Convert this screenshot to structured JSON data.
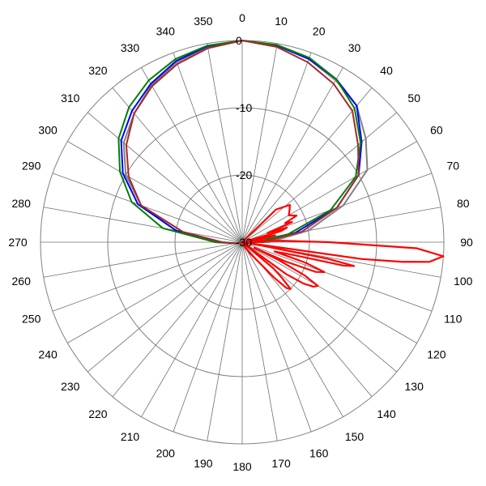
{
  "chart_data": {
    "type": "polar-line",
    "angle_ticks": [
      "0",
      "10",
      "20",
      "30",
      "40",
      "50",
      "60",
      "70",
      "80",
      "90",
      "100",
      "110",
      "120",
      "130",
      "140",
      "150",
      "160",
      "170",
      "180",
      "190",
      "200",
      "210",
      "220",
      "230",
      "240",
      "250",
      "260",
      "270",
      "280",
      "290",
      "300",
      "310",
      "320",
      "330",
      "340",
      "350"
    ],
    "radial_ticks": [
      "0",
      "-10",
      "-20",
      "-30"
    ],
    "rlim": [
      -30,
      0
    ],
    "grid": true,
    "series": [
      {
        "color": "#808080",
        "angles": [
          0,
          10,
          20,
          30,
          40,
          50,
          60,
          70,
          80,
          90,
          100,
          120,
          140,
          160,
          180,
          200,
          220,
          240,
          260,
          270,
          280,
          290,
          300,
          310,
          320,
          330,
          340,
          350
        ],
        "values": [
          0,
          -0.3,
          -1,
          -2.2,
          -3.5,
          -6,
          -8.5,
          -14,
          -20,
          -26,
          -30,
          -30,
          -30,
          -30,
          -30,
          -30,
          -30,
          -30,
          -29,
          -26,
          -20,
          -14,
          -10,
          -7,
          -5,
          -3,
          -1.5,
          -0.5
        ]
      },
      {
        "color": "#0000ff",
        "angles": [
          0,
          10,
          20,
          30,
          40,
          50,
          60,
          70,
          80,
          90,
          100,
          120,
          140,
          160,
          180,
          200,
          220,
          240,
          260,
          270,
          280,
          290,
          300,
          310,
          320,
          330,
          340,
          350
        ],
        "values": [
          0,
          -0.3,
          -1,
          -2,
          -3.5,
          -6.8,
          -10,
          -15,
          -22,
          -27,
          -30,
          -30,
          -30,
          -30,
          -30,
          -30,
          -30,
          -30,
          -29,
          -27,
          -20,
          -13.5,
          -9.5,
          -6.5,
          -4.5,
          -2.8,
          -1.3,
          -0.4
        ]
      },
      {
        "color": "#008000",
        "angles": [
          0,
          10,
          20,
          30,
          40,
          50,
          60,
          70,
          80,
          90,
          100,
          120,
          140,
          160,
          180,
          200,
          220,
          240,
          260,
          270,
          280,
          290,
          300,
          310,
          320,
          330,
          340,
          350
        ],
        "values": [
          0,
          -0.2,
          -0.8,
          -2,
          -4,
          -7,
          -10.5,
          -16,
          -23,
          -28,
          -30,
          -30,
          -30,
          -30,
          -30,
          -30,
          -30,
          -30,
          -29,
          -26,
          -18,
          -12.5,
          -9,
          -6,
          -3.8,
          -2.2,
          -1,
          -0.3
        ]
      },
      {
        "color": "#a52a2a",
        "angles": [
          0,
          10,
          20,
          30,
          40,
          50,
          60,
          70,
          80,
          90,
          100,
          120,
          140,
          160,
          180,
          200,
          220,
          240,
          260,
          270,
          280,
          290,
          300,
          310,
          320,
          330,
          340,
          350
        ],
        "values": [
          0,
          -0.5,
          -1.5,
          -2.8,
          -4.5,
          -7.5,
          -10,
          -15,
          -21,
          -27,
          -30,
          -30,
          -30,
          -30,
          -30,
          -30,
          -30,
          -30,
          -29,
          -27,
          -21,
          -14,
          -10.5,
          -7.5,
          -5,
          -3.2,
          -1.8,
          -0.7
        ]
      },
      {
        "color": "#ff0000",
        "angles": [
          0,
          20,
          40,
          46,
          52,
          56,
          60,
          64,
          66,
          68,
          70,
          72,
          74,
          76,
          78,
          80,
          81,
          82,
          84,
          86,
          88,
          90,
          92,
          94,
          96,
          97,
          98,
          99,
          100,
          101,
          102,
          103,
          104,
          106,
          108,
          110,
          112,
          114,
          115,
          116,
          118,
          120,
          122,
          124,
          126,
          128,
          130,
          131,
          132,
          134,
          136,
          138,
          140,
          145,
          150,
          160,
          180,
          270,
          300,
          340,
          360
        ],
        "values": [
          -30,
          -30,
          -30,
          -23,
          -21,
          -21.5,
          -22,
          -21,
          -23,
          -22,
          -26,
          -23,
          -24,
          -29,
          -25,
          -26,
          -29,
          -28,
          -27,
          -28,
          -24,
          -17,
          -4,
          0,
          -2,
          -6,
          -12,
          -30,
          -27,
          -17,
          -13,
          -14.5,
          -22,
          -25,
          -20,
          -17,
          -18.2,
          -23,
          -28,
          -24,
          -19.5,
          -17,
          -17.5,
          -19,
          -22,
          -30,
          -24,
          -23,
          -22,
          -20,
          -20.5,
          -23,
          -26,
          -28,
          -29,
          -30,
          -30,
          -30,
          -30,
          -30,
          -30
        ]
      }
    ]
  }
}
